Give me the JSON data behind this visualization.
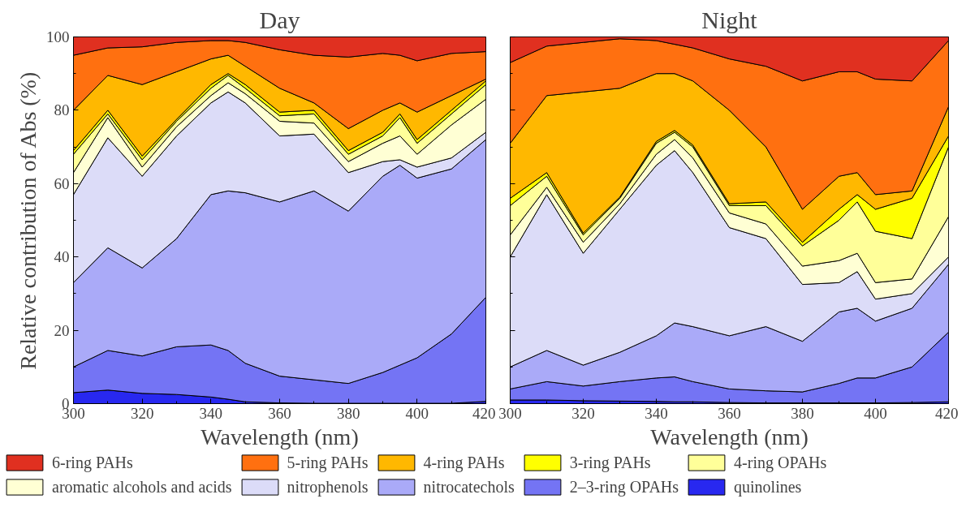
{
  "chart_data": [
    {
      "type": "area",
      "stacked": true,
      "title": "Day",
      "xlabel": "Wavelength (nm)",
      "ylabel": "Relative contribution of Abs (%)",
      "legend": "bottom",
      "grid": false,
      "x": [
        300,
        310,
        320,
        330,
        340,
        345,
        350,
        360,
        370,
        380,
        390,
        395,
        400,
        410,
        420
      ],
      "xlim": [
        300,
        420
      ],
      "xticks": [
        300,
        320,
        340,
        360,
        380,
        400,
        420
      ],
      "ylim": [
        0,
        100
      ],
      "yticks": [
        0,
        20,
        40,
        60,
        80,
        100
      ],
      "series": [
        {
          "name": "quinolines",
          "color": "#2828f0",
          "values": [
            3,
            3.7,
            2.8,
            2.5,
            1.8,
            1.2,
            0.5,
            0.2,
            0.1,
            0.1,
            0.1,
            0.1,
            0.1,
            0.1,
            0.6
          ]
        },
        {
          "name": "2–3-ring OPAHs",
          "color": "#7474f4",
          "values": [
            7,
            10.8,
            10.2,
            13,
            14.2,
            13.3,
            10.5,
            7.3,
            6.4,
            5.4,
            8.4,
            10.4,
            12.4,
            18.9,
            28.4
          ]
        },
        {
          "name": "nitrocatechols",
          "color": "#aaaaf8",
          "values": [
            23,
            28,
            24,
            29.5,
            41,
            43.5,
            46.5,
            47.5,
            51.5,
            47,
            53.5,
            54.5,
            49,
            45,
            43
          ]
        },
        {
          "name": "nitrophenols",
          "color": "#dcdcf8",
          "values": [
            24,
            30,
            25,
            28,
            25,
            27,
            24.5,
            18,
            15.5,
            10.5,
            4,
            1.5,
            3,
            3,
            2
          ]
        },
        {
          "name": "aromatic alcohols and acids",
          "color": "#ffffd4",
          "values": [
            6,
            5.5,
            2.5,
            2.5,
            2,
            2.5,
            2.5,
            4,
            3,
            3,
            5,
            6.5,
            3.5,
            9,
            9
          ]
        },
        {
          "name": "4-ring OPAHs",
          "color": "#ffff99",
          "values": [
            5,
            1,
            2,
            1.5,
            2,
            2,
            1.5,
            1.5,
            2.5,
            2,
            2,
            5,
            3,
            3,
            4
          ]
        },
        {
          "name": "3-ring PAHs",
          "color": "#ffff00",
          "values": [
            1,
            1,
            1,
            0.5,
            1,
            0.5,
            1,
            1,
            1,
            1,
            1,
            1,
            1,
            1,
            1
          ]
        },
        {
          "name": "4-ring PAHs",
          "color": "#ffb800",
          "values": [
            11,
            9.5,
            19.5,
            13,
            7,
            5,
            5,
            6.5,
            2,
            6,
            6,
            3,
            7.5,
            4,
            0.5
          ]
        },
        {
          "name": "5-ring PAHs",
          "color": "#ff7010",
          "values": [
            15,
            7.5,
            10.3,
            8,
            5,
            4,
            6.5,
            10.5,
            13,
            19.5,
            15.5,
            13,
            14,
            11.5,
            7.5
          ]
        },
        {
          "name": "6-ring PAHs",
          "color": "#e03020",
          "values": [
            5,
            3,
            2.7,
            1.5,
            1,
            1,
            1.5,
            3.5,
            5,
            5.5,
            4.5,
            5,
            6.5,
            4.5,
            4
          ]
        }
      ]
    },
    {
      "type": "area",
      "stacked": true,
      "title": "Night",
      "xlabel": "Wavelength (nm)",
      "grid": false,
      "tick_labels": "x",
      "legend": "bottom",
      "x": [
        300,
        310,
        320,
        330,
        340,
        345,
        350,
        360,
        370,
        380,
        390,
        395,
        400,
        410,
        420
      ],
      "xlim": [
        300,
        420
      ],
      "xticks": [
        300,
        320,
        340,
        360,
        380,
        400,
        420
      ],
      "ylim": [
        0,
        100
      ],
      "yticks": [
        0,
        20,
        40,
        60,
        80,
        100
      ],
      "series": [
        {
          "name": "quinolines",
          "color": "#2828f0",
          "values": [
            1,
            1,
            0.8,
            0.7,
            0.6,
            0.5,
            0.5,
            0.3,
            0.2,
            0.2,
            0.2,
            0.2,
            0.2,
            0.3,
            0.5
          ]
        },
        {
          "name": "2–3-ring OPAHs",
          "color": "#7474f4",
          "values": [
            3,
            5,
            4,
            5.3,
            6.4,
            6.8,
            5.5,
            3.7,
            3.3,
            3,
            5.3,
            6.8,
            6.8,
            9.7,
            19
          ]
        },
        {
          "name": "nitrocatechols",
          "color": "#aaaaf8",
          "values": [
            6,
            8.5,
            5.7,
            8,
            11.5,
            14.7,
            15,
            14.5,
            17.5,
            13.8,
            19.5,
            19,
            15.5,
            16,
            18.5
          ]
        },
        {
          "name": "nitrophenols",
          "color": "#dcdcf8",
          "values": [
            30,
            42.5,
            30.5,
            39,
            46.5,
            47,
            42,
            29.5,
            24,
            15.5,
            8,
            10,
            6,
            4,
            2
          ]
        },
        {
          "name": "aromatic alcohols and acids",
          "color": "#ffffd4",
          "values": [
            6,
            2,
            3,
            1.5,
            3,
            3,
            4,
            4,
            4,
            5,
            6,
            5,
            4.5,
            4,
            11
          ]
        },
        {
          "name": "4-ring OPAHs",
          "color": "#ffff99",
          "values": [
            8,
            3,
            2,
            1.5,
            3,
            2,
            3,
            2,
            5,
            5.5,
            11,
            14,
            14,
            11,
            19
          ]
        },
        {
          "name": "3-ring PAHs",
          "color": "#ffff00",
          "values": [
            2,
            1,
            0.5,
            0.3,
            0.5,
            0.5,
            0.5,
            0.5,
            1,
            1,
            3,
            2,
            6,
            11,
            3
          ]
        },
        {
          "name": "4-ring PAHs",
          "color": "#ffb800",
          "values": [
            15,
            21,
            38.5,
            29.7,
            18.5,
            15.5,
            17.5,
            25.5,
            15,
            9,
            9,
            6,
            4,
            2,
            8
          ]
        },
        {
          "name": "5-ring PAHs",
          "color": "#ff7010",
          "values": [
            22,
            13.5,
            13.5,
            13.5,
            9,
            8,
            9,
            14,
            22,
            35,
            28.5,
            27.5,
            31.5,
            30,
            18
          ]
        },
        {
          "name": "6-ring PAHs",
          "color": "#e03020",
          "values": [
            7,
            2.5,
            1.5,
            0.5,
            1,
            2,
            3,
            6,
            8,
            12,
            9.5,
            9.5,
            11.5,
            12,
            1
          ]
        }
      ]
    }
  ]
}
